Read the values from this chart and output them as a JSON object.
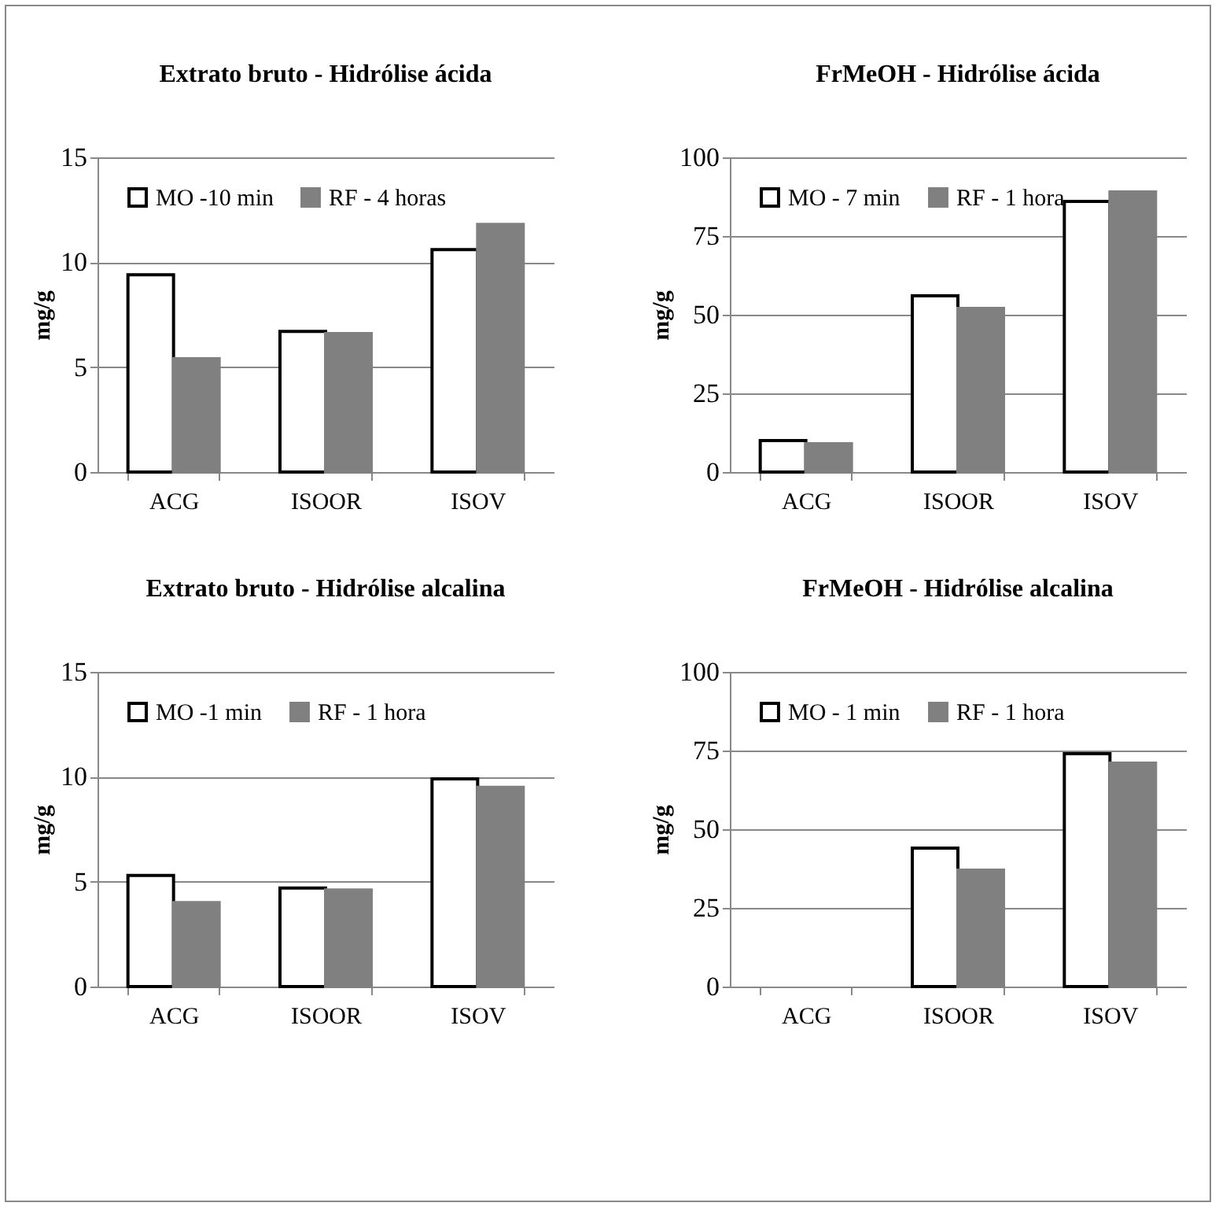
{
  "chart_data": [
    {
      "type": "bar",
      "title": "Extrato bruto  - Hidrólise ácida",
      "ylabel": "mg/g",
      "categories": [
        "ACG",
        "ISOOR",
        "ISOV"
      ],
      "ylim": [
        0,
        15
      ],
      "yticks": [
        0,
        5,
        10,
        15
      ],
      "grid": "y",
      "legend": "top",
      "series": [
        {
          "name": "MO -10 min",
          "color": "#ffffff",
          "values": [
            9.4,
            6.7,
            10.6
          ]
        },
        {
          "name": "RF - 4 horas",
          "color": "#808080",
          "values": [
            5.4,
            6.6,
            11.8
          ]
        }
      ]
    },
    {
      "type": "bar",
      "title": "FrMeOH - Hidrólise ácida",
      "ylabel": "mg/g",
      "categories": [
        "ACG",
        "ISOOR",
        "ISOV"
      ],
      "ylim": [
        0,
        100
      ],
      "yticks": [
        0,
        25,
        50,
        75,
        100
      ],
      "grid": "y",
      "legend": "top",
      "series": [
        {
          "name": "MO - 7 min",
          "color": "#ffffff",
          "values": [
            10,
            56,
            86
          ]
        },
        {
          "name": "RF - 1 hora",
          "color": "#808080",
          "values": [
            9,
            52,
            89
          ]
        }
      ]
    },
    {
      "type": "bar",
      "title": "Extrato bruto - Hidrólise alcalina",
      "ylabel": "mg/g",
      "categories": [
        "ACG",
        "ISOOR",
        "ISOV"
      ],
      "ylim": [
        0,
        15
      ],
      "yticks": [
        0,
        5,
        10,
        15
      ],
      "grid": "y",
      "legend": "top",
      "series": [
        {
          "name": "MO -1 min",
          "color": "#ffffff",
          "values": [
            5.3,
            4.7,
            9.9
          ]
        },
        {
          "name": "RF - 1 hora",
          "color": "#808080",
          "values": [
            4.0,
            4.6,
            9.5
          ]
        }
      ]
    },
    {
      "type": "bar",
      "title": "FrMeOH - Hidrólise alcalina",
      "ylabel": "mg/g",
      "categories": [
        "ACG",
        "ISOOR",
        "ISOV"
      ],
      "ylim": [
        0,
        100
      ],
      "yticks": [
        0,
        25,
        50,
        75,
        100
      ],
      "grid": "y",
      "legend": "top",
      "series": [
        {
          "name": "MO - 1 min",
          "color": "#ffffff",
          "values": [
            null,
            44,
            74
          ]
        },
        {
          "name": "RF - 1 hora",
          "color": "#808080",
          "values": [
            null,
            37,
            71
          ]
        }
      ]
    }
  ]
}
